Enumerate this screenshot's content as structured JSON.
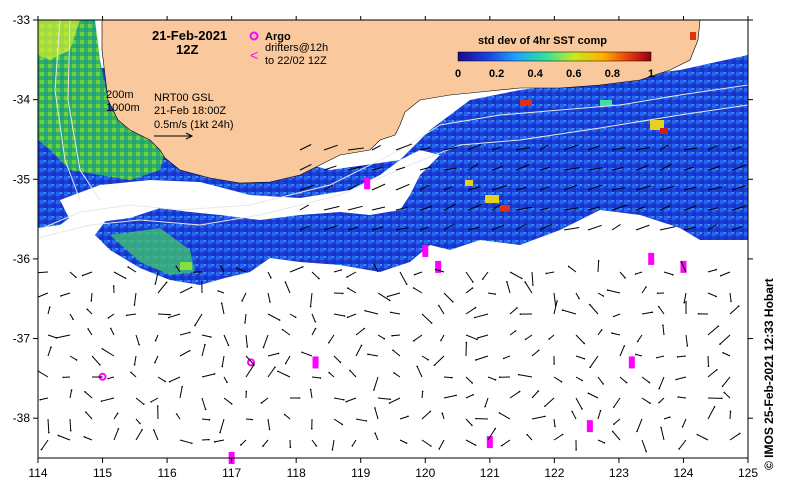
{
  "map": {
    "date_title": "21-Feb-2021",
    "time_title": "12Z",
    "depth_contours": [
      "200m",
      "1000m"
    ],
    "current_source": "NRT00 GSL",
    "current_time": "21-Feb 18:00Z",
    "vector_scale": "0.5m/s (1kt 24h)",
    "legend": {
      "argo_label": "Argo",
      "drifters_label": "drifters@12h",
      "drifters_to": "to 22/02 12Z",
      "argo_color": "#ff00ff",
      "drifter_color": "#ff00ff"
    },
    "colorbar": {
      "title": "std dev of 4hr SST comp",
      "ticks": [
        "0",
        "0.2",
        "0.4",
        "0.6",
        "0.8",
        "1"
      ],
      "min": 0,
      "max": 1
    },
    "x_ticks": [
      "114",
      "115",
      "116",
      "117",
      "118",
      "119",
      "120",
      "121",
      "122",
      "123",
      "124",
      "125"
    ],
    "y_ticks": [
      "-33",
      "-34",
      "-35",
      "-36",
      "-37",
      "-38"
    ],
    "lon_range": [
      114,
      125
    ],
    "lat_range": [
      -33,
      -38.5
    ],
    "credit": "© IMOS 25-Feb-2021 12:33 Hobart",
    "colors": {
      "land": "#f9c89c",
      "ocean_low": "#1a2fd6",
      "ocean_high": "#2e78ff",
      "argo": "#ff00ff"
    }
  }
}
